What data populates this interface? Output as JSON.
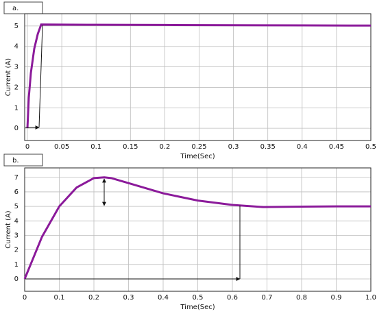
{
  "chart_data": [
    {
      "type": "line",
      "panel_label": "a.",
      "xlabel": "Time(Sec)",
      "ylabel": "Current (A)",
      "xlim": [
        -0.004,
        0.5
      ],
      "ylim": [
        -0.6,
        5.6
      ],
      "xticks": [
        0,
        0.05,
        0.1,
        0.15,
        0.2,
        0.25,
        0.3,
        0.35,
        0.4,
        0.45,
        0.5
      ],
      "yticks": [
        0,
        1,
        2,
        3,
        4,
        5
      ],
      "grid": true,
      "x": [
        0,
        0.002,
        0.005,
        0.01,
        0.015,
        0.02,
        0.1,
        0.2,
        0.3,
        0.4,
        0.5
      ],
      "series": [
        {
          "color": "#8b1a9a",
          "values": [
            0,
            1.5,
            2.7,
            3.9,
            4.6,
            5.07,
            5.06,
            5.05,
            5.04,
            5.03,
            5.02
          ]
        }
      ]
    },
    {
      "type": "line",
      "panel_label": "b.",
      "xlabel": "Time(Sec)",
      "ylabel": "Current (A)",
      "xlim": [
        0,
        1.0
      ],
      "ylim": [
        -0.85,
        7.65
      ],
      "xticks": [
        0,
        0.1,
        0.2,
        0.3,
        0.4,
        0.5,
        0.6,
        0.7,
        0.8,
        0.9,
        {
          "value": 1.0,
          "label": "1.0"
        }
      ],
      "yticks": [
        0,
        1,
        2,
        3,
        4,
        5,
        6,
        7
      ],
      "grid": true,
      "x": [
        0,
        0.05,
        0.1,
        0.15,
        0.2,
        0.23,
        0.25,
        0.3,
        0.4,
        0.5,
        0.6,
        0.69,
        0.8,
        0.9,
        1.0
      ],
      "series": [
        {
          "color": "#8b1a9a",
          "values": [
            0,
            2.9,
            5.0,
            6.3,
            6.95,
            7.0,
            6.95,
            6.6,
            5.9,
            5.4,
            5.1,
            4.95,
            4.98,
            5.0,
            5.0
          ]
        }
      ]
    }
  ]
}
